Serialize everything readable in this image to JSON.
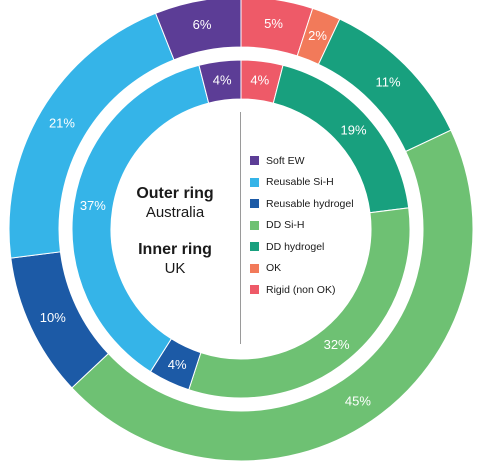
{
  "chart_data": {
    "type": "donut",
    "center_text": {
      "outer_title": "Outer ring",
      "outer_subtitle": "Australia",
      "inner_title": "Inner ring",
      "inner_subtitle": "UK"
    },
    "legend_position": "center-right",
    "categories": [
      "Soft EW",
      "Reusable Si-H",
      "Reusable hydrogel",
      "DD Si-H",
      "DD hydrogel",
      "OK",
      "Rigid (non OK)"
    ],
    "colors": {
      "Soft EW": "#5c3d96",
      "Reusable Si-H": "#35b4e8",
      "Reusable hydrogel": "#1c5aa6",
      "DD Si-H": "#6ec173",
      "DD hydrogel": "#18a07e",
      "OK": "#f27a5a",
      "Rigid (non OK)": "#ee5a68"
    },
    "series": [
      {
        "name": "Outer ring",
        "slices": [
          {
            "category": "Rigid (non OK)",
            "value": 5,
            "label": "5%"
          },
          {
            "category": "OK",
            "value": 2,
            "label": "2%"
          },
          {
            "category": "DD hydrogel",
            "value": 11,
            "label": "11%"
          },
          {
            "category": "DD Si-H",
            "value": 45,
            "label": "45%"
          },
          {
            "category": "Reusable hydrogel",
            "value": 10,
            "label": "10%"
          },
          {
            "category": "Reusable Si-H",
            "value": 21,
            "label": "21%"
          },
          {
            "category": "Soft EW",
            "value": 6,
            "label": "6%"
          }
        ]
      },
      {
        "name": "Inner ring",
        "slices": [
          {
            "category": "Rigid (non OK)",
            "value": 4,
            "label": "4%"
          },
          {
            "category": "DD hydrogel",
            "value": 19,
            "label": "19%"
          },
          {
            "category": "DD Si-H",
            "value": 32,
            "label": "32%"
          },
          {
            "category": "Reusable hydrogel",
            "value": 4,
            "label": "4%"
          },
          {
            "category": "Reusable Si-H",
            "value": 37,
            "label": "37%"
          },
          {
            "category": "Soft EW",
            "value": 4,
            "label": "4%"
          }
        ]
      }
    ]
  }
}
